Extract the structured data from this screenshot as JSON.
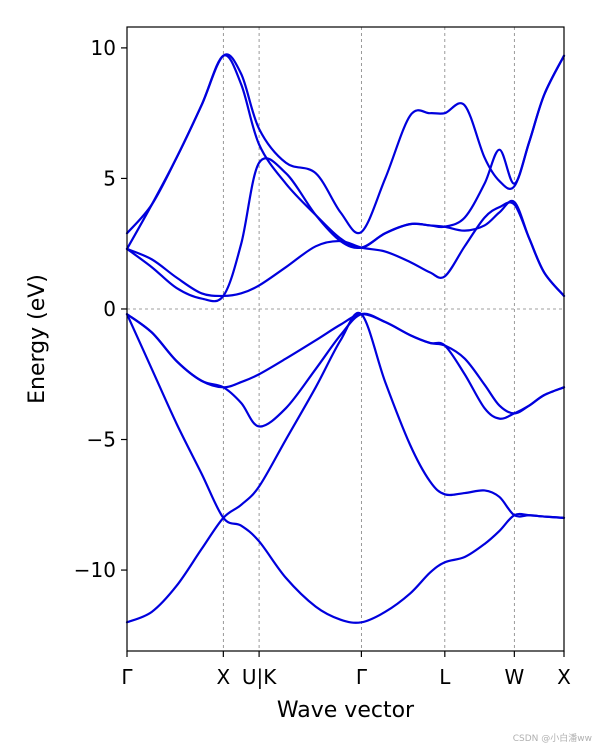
{
  "chart_data": {
    "type": "line",
    "title": "",
    "xlabel": "Wave vector",
    "ylabel": "Energy (eV)",
    "ylim": [
      -13.1,
      10.8
    ],
    "xlim": [
      0,
      4.4
    ],
    "yticks": [
      10,
      5,
      0,
      -5,
      -10
    ],
    "ytick_labels": [
      "10",
      "5",
      "0",
      "−5",
      "−10"
    ],
    "high_symmetry_points": [
      {
        "label": "Γ",
        "x": 0.0
      },
      {
        "label": "X",
        "x": 0.97
      },
      {
        "label": "U|K",
        "x": 1.33
      },
      {
        "label": "Γ",
        "x": 2.36
      },
      {
        "label": "L",
        "x": 3.2
      },
      {
        "label": "W",
        "x": 3.9
      },
      {
        "label": "X",
        "x": 4.4
      }
    ],
    "vertical_grid": true,
    "fermi_level_line": 0,
    "line_color": "#0000dd",
    "series": [
      {
        "x": [
          0,
          0.25,
          0.5,
          0.75,
          0.97,
          1.15,
          1.33,
          1.6,
          1.9,
          2.15,
          2.36,
          2.6,
          2.85,
          3.05,
          3.2,
          3.4,
          3.6,
          3.75,
          3.9,
          4.05,
          4.2,
          4.4
        ],
        "y": [
          -12.0,
          -11.6,
          -10.6,
          -9.2,
          -8.0,
          -7.5,
          -6.8,
          -5.0,
          -3.0,
          -1.2,
          -0.2,
          -2.8,
          -5.2,
          -6.6,
          -7.1,
          -7.05,
          -6.95,
          -7.2,
          -7.9,
          -7.9,
          -7.95,
          -8.0
        ]
      },
      {
        "x": [
          0,
          0.25,
          0.5,
          0.75,
          0.97,
          1.15,
          1.33,
          1.6,
          1.9,
          2.15,
          2.36,
          2.6,
          2.85,
          3.05,
          3.2,
          3.4,
          3.6,
          3.75,
          3.9,
          4.05,
          4.2,
          4.4
        ],
        "y": [
          -0.2,
          -2.3,
          -4.4,
          -6.3,
          -8.0,
          -8.3,
          -8.9,
          -10.3,
          -11.4,
          -11.9,
          -12.0,
          -11.6,
          -10.9,
          -10.1,
          -9.7,
          -9.5,
          -9.0,
          -8.5,
          -7.9,
          -7.9,
          -7.95,
          -8.0
        ]
      },
      {
        "x": [
          0,
          0.25,
          0.5,
          0.75,
          0.97,
          1.15,
          1.33,
          1.6,
          1.9,
          2.15,
          2.36,
          2.6,
          2.85,
          3.05,
          3.2,
          3.4,
          3.6,
          3.75,
          3.9,
          4.05,
          4.2,
          4.4
        ],
        "y": [
          -0.2,
          -0.9,
          -2.0,
          -2.75,
          -3.0,
          -3.6,
          -4.5,
          -3.8,
          -2.3,
          -1.0,
          -0.2,
          -0.5,
          -1.0,
          -1.3,
          -1.4,
          -2.5,
          -3.8,
          -4.2,
          -4.0,
          -3.7,
          -3.3,
          -3.0
        ]
      },
      {
        "x": [
          0,
          0.25,
          0.5,
          0.75,
          0.97,
          1.15,
          1.33,
          1.6,
          1.9,
          2.15,
          2.36,
          2.6,
          2.85,
          3.05,
          3.2,
          3.4,
          3.6,
          3.75,
          3.9,
          4.05,
          4.2,
          4.4
        ],
        "y": [
          -0.2,
          -0.9,
          -2.0,
          -2.75,
          -3.0,
          -2.8,
          -2.5,
          -1.9,
          -1.2,
          -0.6,
          -0.2,
          -0.5,
          -1.0,
          -1.3,
          -1.4,
          -1.9,
          -2.9,
          -3.7,
          -4.0,
          -3.7,
          -3.3,
          -3.0
        ]
      },
      {
        "x": [
          0,
          0.25,
          0.5,
          0.75,
          0.97,
          1.15,
          1.33,
          1.6,
          1.9,
          2.15,
          2.36,
          2.6,
          2.85,
          3.05,
          3.2,
          3.4,
          3.6,
          3.75,
          3.9,
          4.05,
          4.2,
          4.4
        ],
        "y": [
          2.3,
          1.9,
          1.2,
          0.6,
          0.5,
          0.6,
          0.9,
          1.6,
          2.4,
          2.6,
          2.35,
          2.2,
          1.8,
          1.4,
          1.25,
          2.4,
          3.5,
          3.9,
          4.0,
          2.7,
          1.4,
          0.5
        ]
      },
      {
        "x": [
          0,
          0.25,
          0.5,
          0.75,
          0.97,
          1.15,
          1.33,
          1.6,
          1.9,
          2.15,
          2.36,
          2.6,
          2.85,
          3.05,
          3.2,
          3.4,
          3.6,
          3.75,
          3.9,
          4.05,
          4.2,
          4.4
        ],
        "y": [
          2.3,
          1.6,
          0.8,
          0.4,
          0.5,
          2.5,
          5.6,
          5.2,
          3.6,
          2.6,
          2.35,
          2.9,
          3.25,
          3.2,
          3.15,
          3.0,
          3.2,
          3.7,
          4.1,
          2.7,
          1.4,
          0.5
        ]
      },
      {
        "x": [
          0,
          0.25,
          0.5,
          0.75,
          0.97,
          1.15,
          1.33,
          1.6,
          1.9,
          2.15,
          2.36,
          2.6,
          2.85,
          3.05,
          3.2,
          3.4,
          3.6,
          3.75,
          3.9,
          4.05,
          4.2,
          4.4
        ],
        "y": [
          2.3,
          4.0,
          5.8,
          7.8,
          9.7,
          8.6,
          6.3,
          4.8,
          3.6,
          2.7,
          2.35,
          2.9,
          3.25,
          3.2,
          3.15,
          3.5,
          4.8,
          6.1,
          4.8,
          6.4,
          8.2,
          9.7
        ]
      },
      {
        "x": [
          0,
          0.25,
          0.5,
          0.75,
          0.97,
          1.15,
          1.33,
          1.6,
          1.9,
          2.15,
          2.36,
          2.6,
          2.85,
          3.05,
          3.2,
          3.4,
          3.6,
          3.75,
          3.9,
          4.05,
          4.2,
          4.4
        ],
        "y": [
          2.9,
          4.0,
          5.8,
          7.8,
          9.7,
          9.0,
          6.9,
          5.6,
          5.2,
          3.7,
          2.95,
          5.0,
          7.4,
          7.5,
          7.5,
          7.8,
          5.8,
          4.9,
          4.7,
          6.4,
          8.2,
          9.7
        ]
      }
    ]
  },
  "watermark": "CSDN @小白潘ww"
}
